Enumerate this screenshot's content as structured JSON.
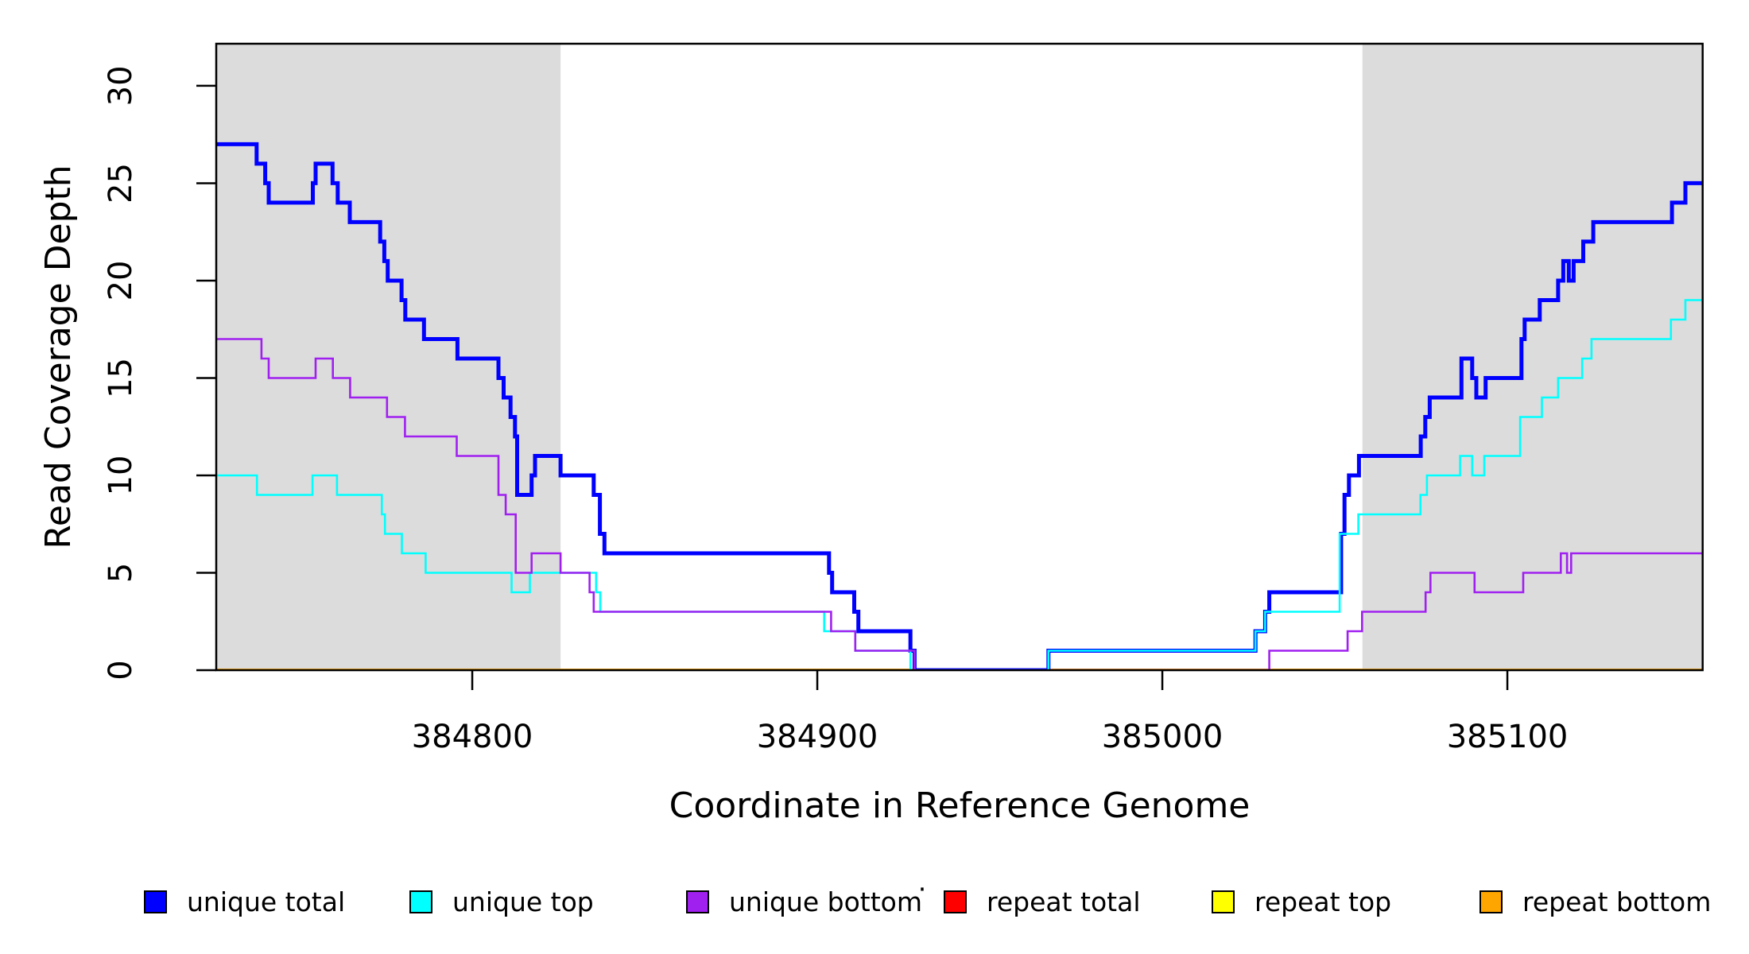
{
  "chart_data": {
    "type": "step-line",
    "title": "",
    "xlabel": "Coordinate in Reference Genome",
    "ylabel": "Read Coverage Depth",
    "x_ticks": [
      384800,
      384900,
      385000,
      385100
    ],
    "y_ticks": [
      0,
      5,
      10,
      15,
      20,
      25,
      30
    ],
    "x_range": [
      384725.8,
      385156.6
    ],
    "y_range": [
      0,
      32.16
    ],
    "grid": false,
    "axis_color": "#000000",
    "shade_color": "#DCDCDC",
    "shaded_regions": [
      {
        "x0": 384725.8,
        "x1": 384825.6
      },
      {
        "x0": 385058.0,
        "x1": 385156.6
      }
    ],
    "series": [
      {
        "name": "repeat total",
        "color": "#FF0000",
        "width": 3.5,
        "steps": [
          [
            384725.8,
            0
          ]
        ]
      },
      {
        "name": "repeat top",
        "color": "#FFFF00",
        "width": 3.5,
        "steps": [
          [
            384725.8,
            0
          ]
        ]
      },
      {
        "name": "repeat bottom",
        "color": "#FFA500",
        "width": 3.8,
        "steps": [
          [
            384725.8,
            0
          ]
        ]
      },
      {
        "name": "unique total",
        "color": "#0000FF",
        "width": 5,
        "steps": [
          [
            384725.8,
            27
          ],
          [
            384737.5,
            26
          ],
          [
            384740,
            25
          ],
          [
            384741,
            24
          ],
          [
            384753.8,
            25
          ],
          [
            384754.6,
            26
          ],
          [
            384759.5,
            25
          ],
          [
            384761,
            24
          ],
          [
            384764.5,
            23
          ],
          [
            384773.3,
            22
          ],
          [
            384774.5,
            21
          ],
          [
            384775.5,
            20
          ],
          [
            384779.5,
            19
          ],
          [
            384780.6,
            18
          ],
          [
            384786,
            17
          ],
          [
            384795.7,
            16
          ],
          [
            384807.6,
            15
          ],
          [
            384809.1,
            14
          ],
          [
            384811.1,
            13
          ],
          [
            384812.4,
            12
          ],
          [
            384813,
            9
          ],
          [
            384817.2,
            10
          ],
          [
            384818.2,
            11
          ],
          [
            384825.6,
            10
          ],
          [
            384835.2,
            9
          ],
          [
            384837,
            7
          ],
          [
            384838.3,
            6
          ],
          [
            384903.4,
            5
          ],
          [
            384904.3,
            4
          ],
          [
            384910.7,
            3
          ],
          [
            384911.9,
            2
          ],
          [
            384927,
            1
          ],
          [
            384928.2,
            0
          ],
          [
            384967,
            1
          ],
          [
            385027,
            2
          ],
          [
            385029.8,
            3
          ],
          [
            385031,
            4
          ],
          [
            385051.8,
            7
          ],
          [
            385052.8,
            9
          ],
          [
            385054.1,
            10
          ],
          [
            385057,
            11
          ],
          [
            385074.9,
            12
          ],
          [
            385076.2,
            13
          ],
          [
            385077.5,
            14
          ],
          [
            385086.7,
            16
          ],
          [
            385089.8,
            15
          ],
          [
            385091,
            14
          ],
          [
            385093.7,
            15
          ],
          [
            385104.1,
            17
          ],
          [
            385105,
            18
          ],
          [
            385109.4,
            19
          ],
          [
            385114.7,
            20
          ],
          [
            385116.2,
            21
          ],
          [
            385117.8,
            20
          ],
          [
            385119.2,
            21
          ],
          [
            385122,
            22
          ],
          [
            385124.9,
            23
          ],
          [
            385147.7,
            24
          ],
          [
            385151.6,
            25
          ]
        ]
      },
      {
        "name": "unique top",
        "color": "#00FFFF",
        "width": 2.6,
        "steps": [
          [
            384725.8,
            10
          ],
          [
            384737.6,
            9
          ],
          [
            384753.7,
            10
          ],
          [
            384760.8,
            9
          ],
          [
            384773.8,
            8
          ],
          [
            384774.7,
            7
          ],
          [
            384779.6,
            6
          ],
          [
            384786.5,
            5
          ],
          [
            384811.4,
            4
          ],
          [
            384816.7,
            5
          ],
          [
            384835.9,
            4
          ],
          [
            384837.1,
            3
          ],
          [
            384902,
            2
          ],
          [
            384911,
            1
          ],
          [
            384927,
            0
          ],
          [
            384967,
            1
          ],
          [
            385027,
            2
          ],
          [
            385029.8,
            3
          ],
          [
            385051.4,
            7
          ],
          [
            385056.8,
            8
          ],
          [
            385074.8,
            9
          ],
          [
            385076.7,
            10
          ],
          [
            385086.3,
            11
          ],
          [
            385089.8,
            10
          ],
          [
            385093.3,
            11
          ],
          [
            385103.7,
            13
          ],
          [
            385110,
            14
          ],
          [
            385114.7,
            15
          ],
          [
            385121.7,
            16
          ],
          [
            385124.4,
            17
          ],
          [
            385147.4,
            18
          ],
          [
            385151.6,
            19
          ]
        ]
      },
      {
        "name": "unique bottom",
        "color": "#A020F0",
        "width": 2.6,
        "steps": [
          [
            384725.8,
            17
          ],
          [
            384738.9,
            16
          ],
          [
            384741,
            15
          ],
          [
            384754.6,
            16
          ],
          [
            384759.6,
            15
          ],
          [
            384764.6,
            14
          ],
          [
            384775.3,
            13
          ],
          [
            384780.5,
            12
          ],
          [
            384795.5,
            11
          ],
          [
            384807.6,
            9
          ],
          [
            384809.7,
            8
          ],
          [
            384812.6,
            5
          ],
          [
            384817.2,
            6
          ],
          [
            384825.6,
            5
          ],
          [
            384834,
            4
          ],
          [
            384835.2,
            3
          ],
          [
            384904,
            2
          ],
          [
            384911,
            1
          ],
          [
            384928.2,
            0
          ],
          [
            385031,
            1
          ],
          [
            385053.7,
            2
          ],
          [
            385057.9,
            3
          ],
          [
            385076.3,
            4
          ],
          [
            385077.7,
            5
          ],
          [
            385090.5,
            4
          ],
          [
            385104.6,
            5
          ],
          [
            385115.5,
            6
          ],
          [
            385117.3,
            5
          ],
          [
            385118.5,
            6
          ]
        ]
      }
    ],
    "legend": {
      "position": "bottom",
      "stray_dot": "·",
      "items": [
        {
          "label": "unique total",
          "color": "#0000FF"
        },
        {
          "label": "unique top",
          "color": "#00FFFF"
        },
        {
          "label": "unique bottom",
          "color": "#A020F0"
        },
        {
          "label": "repeat total",
          "color": "#FF0000"
        },
        {
          "label": "repeat top",
          "color": "#FFFF00"
        },
        {
          "label": "repeat bottom",
          "color": "#FFA500"
        }
      ]
    }
  }
}
